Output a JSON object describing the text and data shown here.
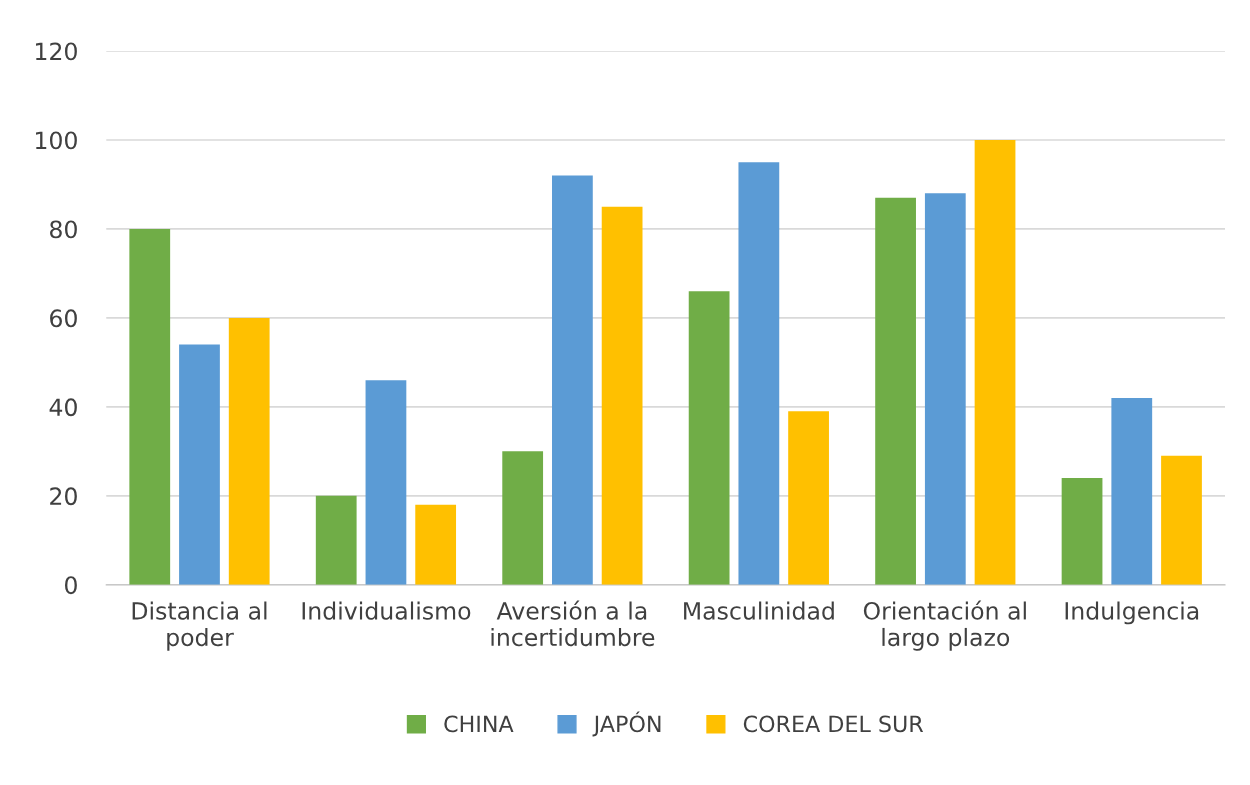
{
  "chart_data": {
    "type": "bar",
    "categories": [
      "Distancia al\npoder",
      "Individualismo",
      "Aversión a la\nincertidumbre",
      "Masculinidad",
      "Orientación al\nlargo plazo",
      "Indulgencia"
    ],
    "series": [
      {
        "name": "CHINA",
        "color": "#70ad47",
        "values": [
          80,
          20,
          30,
          66,
          87,
          24
        ]
      },
      {
        "name": "JAPÓN",
        "color": "#5b9bd5",
        "values": [
          54,
          46,
          92,
          95,
          88,
          42
        ]
      },
      {
        "name": "COREA DEL SUR",
        "color": "#ffc000",
        "values": [
          60,
          18,
          85,
          39,
          100,
          29
        ]
      }
    ],
    "ylim": [
      0,
      120
    ],
    "yticks": [
      0,
      20,
      40,
      60,
      80,
      100,
      120
    ],
    "grid": "y",
    "legend": "bottom"
  }
}
